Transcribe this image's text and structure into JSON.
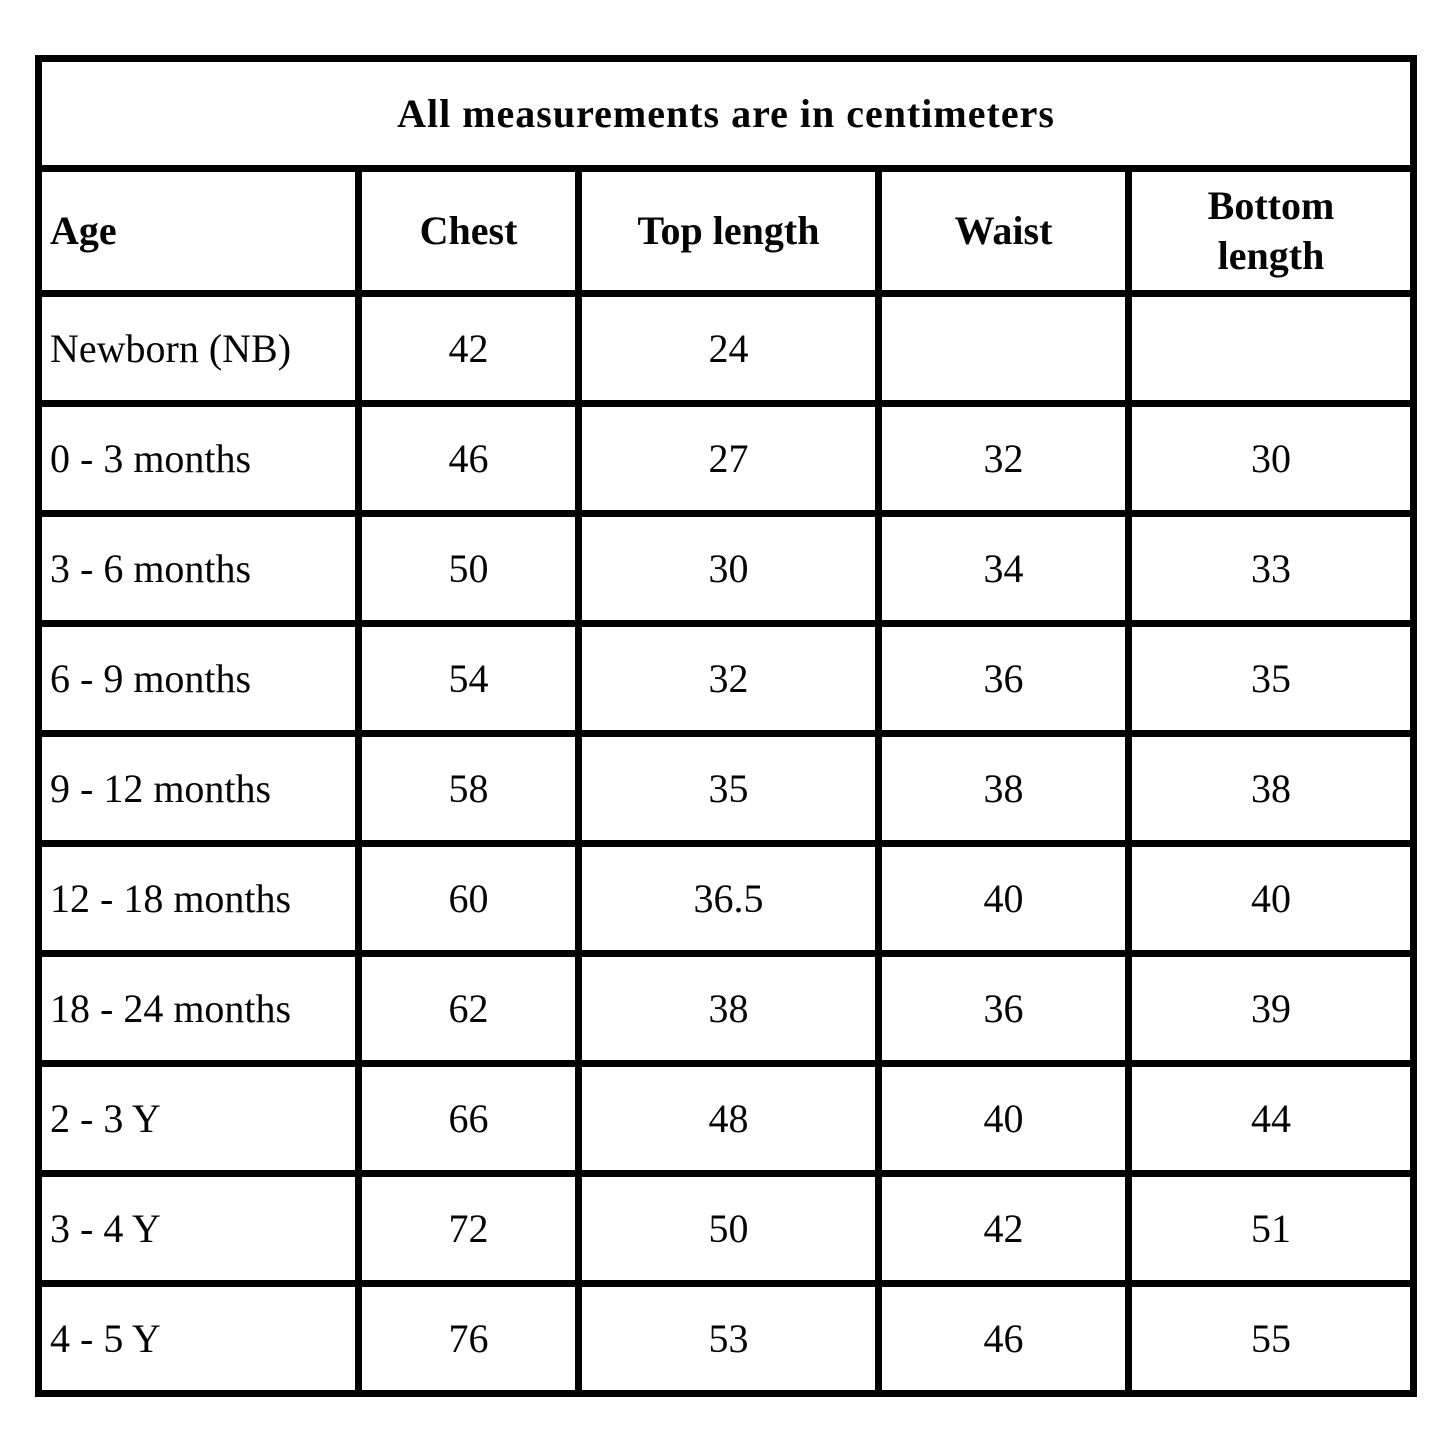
{
  "table": {
    "title": "All measurements are in centimeters",
    "border_color": "#000000",
    "text_color": "#050505",
    "background_color": "#ffffff",
    "columns": [
      "Age",
      "Chest",
      "Top length",
      "Waist",
      "Bottom length"
    ],
    "rows": [
      {
        "age": "Newborn (NB)",
        "values": [
          "42",
          "24",
          "",
          ""
        ]
      },
      {
        "age": "0 - 3 months",
        "values": [
          "46",
          "27",
          "32",
          "30"
        ]
      },
      {
        "age": "3 - 6 months",
        "values": [
          "50",
          "30",
          "34",
          "33"
        ]
      },
      {
        "age": "6 - 9 months",
        "values": [
          "54",
          "32",
          "36",
          "35"
        ]
      },
      {
        "age": "9 - 12 months",
        "values": [
          "58",
          "35",
          "38",
          "38"
        ]
      },
      {
        "age": "12 - 18 months",
        "values": [
          "60",
          "36.5",
          "40",
          "40"
        ]
      },
      {
        "age": "18 - 24 months",
        "values": [
          "62",
          "38",
          "36",
          "39"
        ]
      },
      {
        "age": "2 - 3 Y",
        "values": [
          "66",
          "48",
          "40",
          "44"
        ]
      },
      {
        "age": "3 - 4 Y",
        "values": [
          "72",
          "50",
          "42",
          "51"
        ]
      },
      {
        "age": "4 - 5 Y",
        "values": [
          "76",
          "53",
          "46",
          "55"
        ]
      }
    ]
  },
  "chart_data": {
    "type": "table",
    "title": "All measurements are in centimeters",
    "columns": [
      "Age",
      "Chest",
      "Top length",
      "Waist",
      "Bottom length"
    ],
    "rows": [
      [
        "Newborn (NB)",
        42,
        24,
        null,
        null
      ],
      [
        "0 - 3 months",
        46,
        27,
        32,
        30
      ],
      [
        "3 - 6 months",
        50,
        30,
        34,
        33
      ],
      [
        "6 - 9 months",
        54,
        32,
        36,
        35
      ],
      [
        "9 - 12 months",
        58,
        35,
        38,
        38
      ],
      [
        "12 - 18 months",
        60,
        36.5,
        40,
        40
      ],
      [
        "18 - 24 months",
        62,
        38,
        36,
        39
      ],
      [
        "2 - 3 Y",
        66,
        48,
        40,
        44
      ],
      [
        "3 - 4 Y",
        72,
        50,
        42,
        51
      ],
      [
        "4 - 5 Y",
        76,
        53,
        46,
        55
      ]
    ],
    "layout_hints": {
      "title_row_spans_all_columns": true,
      "age_column_align": "left",
      "value_columns_align": "center",
      "grid": "on"
    }
  }
}
